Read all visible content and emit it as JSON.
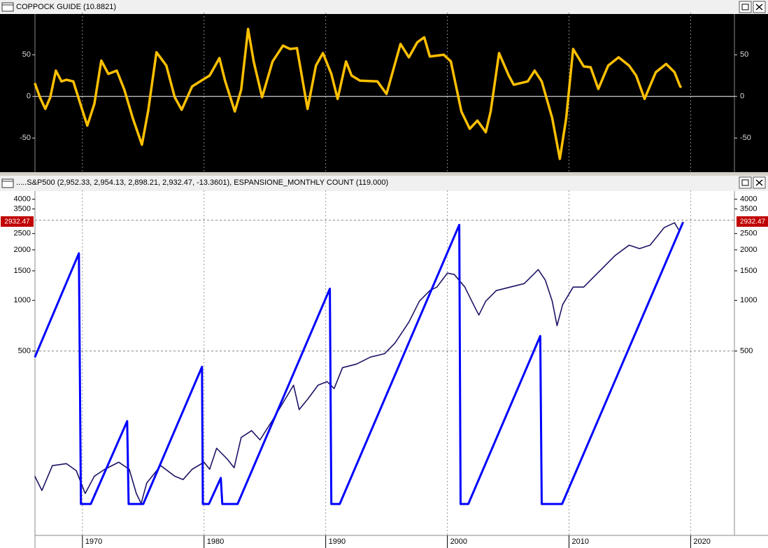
{
  "chart_data": [
    {
      "type": "line",
      "title": "COPPOCK GUIDE (10.8821)",
      "x": [
        1966.09,
        1966.5,
        1966.95,
        1967.36,
        1967.82,
        1968.28,
        1968.68,
        1969.25,
        1969.83,
        1970.4,
        1970.98,
        1971.55,
        1972.13,
        1972.82,
        1973.45,
        1974.14,
        1974.89,
        1975.4,
        1976.09,
        1976.9,
        1977.59,
        1978.16,
        1979.02,
        1979.89,
        1980.46,
        1981.26,
        1981.72,
        1982.53,
        1983.05,
        1983.62,
        1984.08,
        1984.77,
        1985.63,
        1986.49,
        1987.07,
        1987.64,
        1988.51,
        1989.2,
        1989.77,
        1990.46,
        1990.98,
        1991.67,
        1992.13,
        1992.82,
        1994.25,
        1995.0,
        1996.15,
        1996.84,
        1997.53,
        1998.1,
        1998.56,
        1999.71,
        2000.29,
        2001.15,
        2001.84,
        2002.47,
        2003.16,
        2003.56,
        2004.25,
        2005.05,
        2005.46,
        2006.61,
        2007.18,
        2007.76,
        2008.62,
        2009.25,
        2009.77,
        2010.34,
        2011.21,
        2011.78,
        2012.41,
        2013.22,
        2014.08,
        2014.94,
        2015.52,
        2016.21,
        2017.13,
        2017.99,
        2018.68,
        2019.14,
        2019.25
      ],
      "series": [
        {
          "color": "#ffc000",
          "values": [
            16,
            -1,
            -15,
            -1,
            31,
            18,
            20,
            18,
            -9,
            -35,
            -9,
            43,
            27,
            31,
            8,
            -26,
            -58,
            -18,
            53,
            37,
            -1,
            -16,
            12,
            20,
            25,
            46,
            19,
            -18,
            8,
            81,
            42,
            -1,
            42,
            61,
            57,
            58,
            -15,
            37,
            52,
            27,
            -3,
            42,
            25,
            19,
            18,
            3,
            63,
            47,
            65,
            71,
            48,
            50,
            42,
            -18,
            -39,
            -29,
            -43,
            -18,
            52,
            25,
            14,
            18,
            31,
            18,
            -26,
            -75,
            -26,
            57,
            36,
            35,
            9,
            37,
            47,
            37,
            25,
            -3,
            29,
            39,
            29,
            12,
            11
          ]
        }
      ],
      "xlim": [
        1966.1,
        2023.6
      ],
      "xticks": [
        1970,
        1980,
        1990,
        2000,
        2010,
        2020
      ],
      "ylim": [
        -91,
        99
      ],
      "yticks": [
        -50,
        0,
        50
      ],
      "zero_line": true
    },
    {
      "type": "line",
      "title": ".....S&P500 (2,952.33, 2,954.13, 2,898.21, 2,932.47, -13.3601), ESPANSIONE_MONTHLY COUNT (119.000)",
      "series": [
        {
          "color": "#1b1464",
          "x": [
            1966.09,
            1966.67,
            1967.53,
            1968.68,
            1969.5,
            1970.23,
            1970.98,
            1971.84,
            1972.99,
            1973.85,
            1974.43,
            1974.83,
            1975.29,
            1976.44,
            1977.59,
            1978.28,
            1979.02,
            1980.0,
            1980.46,
            1981.03,
            1981.9,
            1982.47,
            1983.05,
            1983.91,
            1984.6,
            1985.63,
            1986.49,
            1987.36,
            1987.82,
            1988.51,
            1989.37,
            1990.11,
            1990.69,
            1991.38,
            1992.53,
            1993.68,
            1994.83,
            1995.69,
            1996.84,
            1997.7,
            1998.56,
            1999.14,
            2000.0,
            2000.57,
            2001.44,
            2002.01,
            2002.59,
            2003.16,
            2004.02,
            2005.17,
            2006.32,
            2007.47,
            2008.05,
            2008.62,
            2009.02,
            2009.48,
            2010.34,
            2011.21,
            2011.78,
            2012.64,
            2013.79,
            2014.94,
            2015.8,
            2016.67,
            2017.82,
            2018.68,
            2019.08,
            2019.4
          ],
          "values": [
            90,
            74,
            104,
            107,
            97,
            71,
            90,
            99,
            109,
            99,
            71,
            62,
            82,
            104,
            90,
            86,
            99,
            109,
            99,
            132,
            114,
            101,
            153,
            168,
            148,
            194,
            246,
            313,
            224,
            258,
            313,
            329,
            299,
            398,
            418,
            460,
            482,
            557,
            743,
            990,
            1144,
            1200,
            1454,
            1426,
            1200,
            990,
            818,
            990,
            1144,
            1200,
            1259,
            1525,
            1321,
            990,
            708,
            944,
            1200,
            1200,
            1321,
            1525,
            1849,
            2132,
            2033,
            2132,
            2712,
            2898,
            2587,
            2932.47
          ]
        },
        {
          "color": "#0000ff",
          "axis": "y2",
          "x": [
            1966.09,
            1969.71,
            1969.88,
            1970.69,
            1973.68,
            1973.8,
            1975.0,
            1979.83,
            1979.9,
            1980.4,
            1981.38,
            1981.5,
            1982.76,
            1990.34,
            1990.46,
            1991.15,
            2000.98,
            2001.09,
            2001.72,
            2007.64,
            2007.76,
            2009.43,
            2019.37
          ],
          "values": [
            62,
            106,
            0,
            0,
            35,
            0,
            0,
            58,
            0,
            0,
            11,
            0,
            0,
            91,
            0,
            0,
            118,
            0,
            0,
            71,
            0,
            0,
            119
          ]
        }
      ],
      "xlim": [
        1966.1,
        2023.6
      ],
      "xticks": [
        1970,
        1980,
        1990,
        2000,
        2010,
        2020
      ],
      "log_scale": true,
      "ylim": [
        40,
        4430
      ],
      "yticks": [
        500,
        1000,
        1500,
        2000,
        2500,
        3500,
        4000
      ],
      "ygrid": [
        500,
        3000
      ],
      "y2lim": [
        -13.3,
        132
      ],
      "last_value": 2932.47,
      "last_value_color": "#c00000"
    }
  ]
}
